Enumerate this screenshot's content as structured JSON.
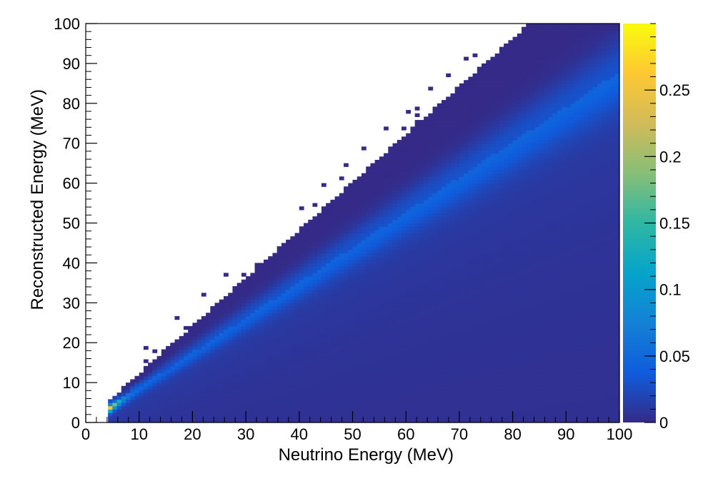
{
  "chart_data": {
    "type": "heatmap",
    "title": "",
    "xlabel": "Neutrino Energy (MeV)",
    "ylabel": "Reconstructed Energy (MeV)",
    "xlim": [
      0,
      100
    ],
    "ylim": [
      0,
      100
    ],
    "x_ticks": [
      "0",
      "10",
      "20",
      "30",
      "40",
      "50",
      "60",
      "70",
      "80",
      "90",
      "100"
    ],
    "y_ticks": [
      "0",
      "10",
      "20",
      "30",
      "40",
      "50",
      "60",
      "70",
      "80",
      "90",
      "100"
    ],
    "colorbar": {
      "range": [
        0,
        0.3
      ],
      "ticks": [
        "0",
        "0.05",
        "0.1",
        "0.15",
        "0.2",
        "0.25"
      ],
      "colormap": "viridis",
      "stops": [
        "#352a87",
        "#0f5cdd",
        "#1481d6",
        "#06a4ca",
        "#2eb7a4",
        "#87bf77",
        "#d1bb59",
        "#fec832",
        "#f9fb0e"
      ]
    },
    "grid": false,
    "legend": "none",
    "distribution": {
      "x_threshold": 4.0,
      "ridge": "reconstructed energy ≈ 0.88 × neutrino energy",
      "upper_edge": "reconstructed energy ≈ 1.2 × neutrino energy (capped at 100)",
      "peak_value": 0.3,
      "peak_location": [
        4.5,
        2.5
      ],
      "ridge_samples": [
        {
          "x": 5,
          "y": 3,
          "value": 0.26
        },
        {
          "x": 10,
          "y": 8,
          "value": 0.12
        },
        {
          "x": 20,
          "y": 17,
          "value": 0.06
        },
        {
          "x": 40,
          "y": 35,
          "value": 0.04
        },
        {
          "x": 60,
          "y": 53,
          "value": 0.035
        },
        {
          "x": 90,
          "y": 80,
          "value": 0.03
        }
      ],
      "background_value": 0.003
    }
  }
}
